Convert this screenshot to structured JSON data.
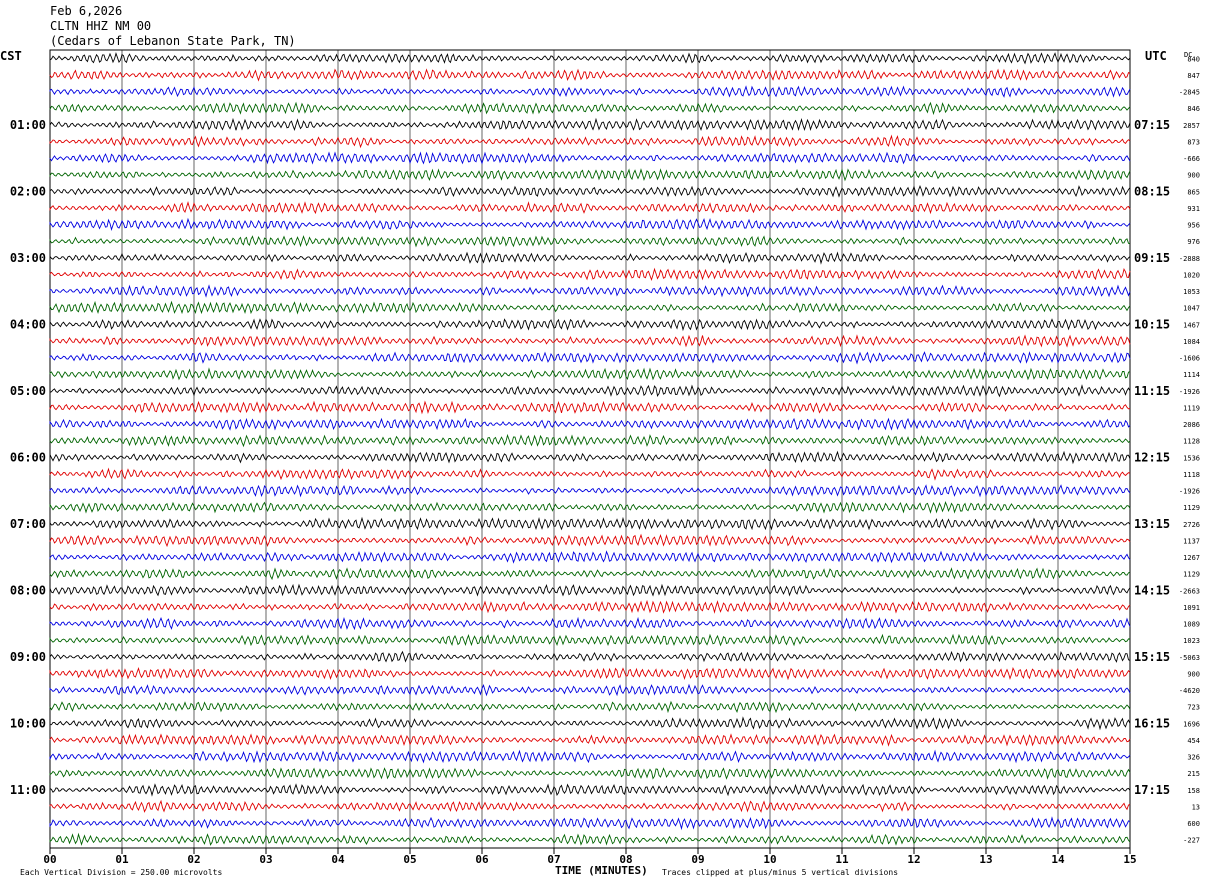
{
  "header": {
    "date": "Feb 6,2026",
    "station": "CLTN HHZ NM 00",
    "location": "(Cedars of Lebanon State Park, TN)"
  },
  "left_axis_title": "CST",
  "right_axis_title": "UTC",
  "dc_label": "DC",
  "footer": {
    "scale": "Each Vertical Division =  250.00 microvolts",
    "xlabel": "TIME (MINUTES)",
    "clip_note": "Traces clipped at plus/minus 5 vertical divisions"
  },
  "colors": {
    "trace_cycle": [
      "#000000",
      "#e00000",
      "#0000e0",
      "#006400"
    ],
    "grid": "#000000"
  },
  "chart_data": {
    "type": "line",
    "description_kind": "helicorder",
    "x_ticks": [
      "00",
      "01",
      "02",
      "03",
      "04",
      "05",
      "06",
      "07",
      "08",
      "09",
      "10",
      "11",
      "12",
      "13",
      "14",
      "15"
    ],
    "xlim": [
      0,
      15
    ],
    "rows_per_hour": 4,
    "row_count": 48,
    "left_hour_labels": [
      "01:00",
      "02:00",
      "03:00",
      "04:00",
      "05:00",
      "06:00",
      "07:00",
      "08:00",
      "09:00",
      "10:00",
      "11:00"
    ],
    "right_hour_labels": [
      "07:15",
      "08:15",
      "09:15",
      "10:15",
      "11:15",
      "12:15",
      "13:15",
      "14:15",
      "15:15",
      "16:15",
      "17:15"
    ],
    "hour_label_rows": [
      4,
      8,
      12,
      16,
      20,
      24,
      28,
      32,
      36,
      40,
      44
    ],
    "dc_offsets": [
      "840",
      "847",
      "-2845",
      "846",
      "2857",
      "873",
      "-666",
      "900",
      "865",
      "931",
      "956",
      "976",
      "-2888",
      "1020",
      "1053",
      "1047",
      "1467",
      "1084",
      "-1606",
      "1114",
      "-1926",
      "1119",
      "2086",
      "1128",
      "1536",
      "1118",
      "-1926",
      "1129",
      "2726",
      "1137",
      "1267",
      "1129",
      "-2663",
      "1091",
      "1089",
      "1023",
      "-5063",
      "900",
      "-4620",
      "723",
      "1696",
      "454",
      "326",
      "215",
      "158",
      "13",
      "600",
      "-227"
    ]
  }
}
